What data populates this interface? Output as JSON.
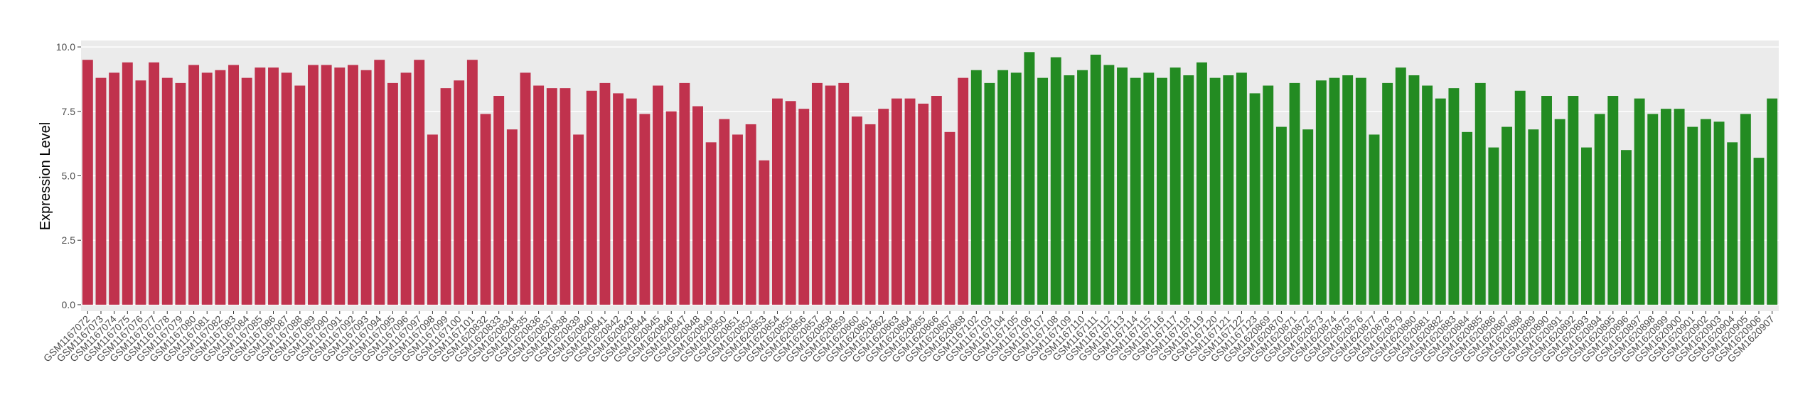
{
  "chart_data": {
    "type": "bar",
    "y_label": "Expression Level",
    "ylim": [
      -0.25,
      10.25
    ],
    "yticks": [
      {
        "value": 0,
        "label": "0.0"
      },
      2.5,
      {
        "value": 5,
        "label": "5.0"
      },
      7.5,
      {
        "value": 10,
        "label": "10.0"
      }
    ],
    "grid": true,
    "series": [
      {
        "color": "#c0324d",
        "categories": [
          "GSM1167072",
          "GSM1167073",
          "GSM1167074",
          "GSM1167075",
          "GSM1167076",
          "GSM1167077",
          "GSM1167078",
          "GSM1167079",
          "GSM1167080",
          "GSM1167081",
          "GSM1167082",
          "GSM1167083",
          "GSM1167084",
          "GSM1167085",
          "GSM1167086",
          "GSM1167087",
          "GSM1167088",
          "GSM1167089",
          "GSM1167090",
          "GSM1167091",
          "GSM1167092",
          "GSM1167093",
          "GSM1167094",
          "GSM1167095",
          "GSM1167096",
          "GSM1167097",
          "GSM1167098",
          "GSM1167099",
          "GSM1167100",
          "GSM1167101",
          "GSM1620832",
          "GSM1620833",
          "GSM1620834",
          "GSM1620835",
          "GSM1620836",
          "GSM1620837",
          "GSM1620838",
          "GSM1620839",
          "GSM1620840",
          "GSM1620841",
          "GSM1620842",
          "GSM1620843",
          "GSM1620844",
          "GSM1620845",
          "GSM1620846",
          "GSM1620847",
          "GSM1620848",
          "GSM1620849",
          "GSM1620850",
          "GSM1620851",
          "GSM1620852",
          "GSM1620853",
          "GSM1620854",
          "GSM1620855",
          "GSM1620856",
          "GSM1620857",
          "GSM1620858",
          "GSM1620859",
          "GSM1620860",
          "GSM1620861",
          "GSM1620862",
          "GSM1620863",
          "GSM1620864",
          "GSM1620865",
          "GSM1620866",
          "GSM1620867",
          "GSM1620868"
        ],
        "values": [
          9.5,
          8.8,
          9.0,
          9.4,
          8.7,
          9.4,
          8.8,
          8.6,
          9.3,
          9.0,
          9.1,
          9.3,
          8.8,
          9.2,
          9.2,
          9.0,
          8.5,
          9.3,
          9.3,
          9.2,
          9.3,
          9.1,
          9.5,
          8.6,
          9.0,
          9.5,
          6.6,
          8.4,
          8.7,
          9.5,
          7.4,
          8.1,
          6.8,
          9.0,
          8.5,
          8.4,
          8.4,
          6.6,
          8.3,
          8.6,
          8.2,
          8.0,
          7.4,
          8.5,
          7.5,
          8.6,
          7.7,
          6.3,
          7.2,
          6.6,
          7.0,
          5.6,
          8.0,
          7.9,
          7.6,
          8.6,
          8.5,
          8.6,
          7.3,
          7.0,
          7.6,
          8.0,
          8.0,
          7.8,
          8.1,
          6.7,
          8.8
        ]
      },
      {
        "color": "#238b22",
        "categories": [
          "GSM1167102",
          "GSM1167103",
          "GSM1167104",
          "GSM1167105",
          "GSM1167106",
          "GSM1167107",
          "GSM1167108",
          "GSM1167109",
          "GSM1167110",
          "GSM1167111",
          "GSM1167112",
          "GSM1167113",
          "GSM1167114",
          "GSM1167115",
          "GSM1167116",
          "GSM1167117",
          "GSM1167118",
          "GSM1167119",
          "GSM1167120",
          "GSM1167121",
          "GSM1167122",
          "GSM1167123",
          "GSM1620869",
          "GSM1620870",
          "GSM1620871",
          "GSM1620872",
          "GSM1620873",
          "GSM1620874",
          "GSM1620875",
          "GSM1620876",
          "GSM1620877",
          "GSM1620878",
          "GSM1620879",
          "GSM1620880",
          "GSM1620881",
          "GSM1620882",
          "GSM1620883",
          "GSM1620884",
          "GSM1620885",
          "GSM1620886",
          "GSM1620887",
          "GSM1620888",
          "GSM1620889",
          "GSM1620890",
          "GSM1620891",
          "GSM1620892",
          "GSM1620893",
          "GSM1620894",
          "GSM1620895",
          "GSM1620896",
          "GSM1620897",
          "GSM1620898",
          "GSM1620899",
          "GSM1620900",
          "GSM1620901",
          "GSM1620902",
          "GSM1620903",
          "GSM1620904",
          "GSM1620905",
          "GSM1620906",
          "GSM1620907"
        ],
        "values": [
          9.1,
          8.6,
          9.1,
          9.0,
          9.8,
          8.8,
          9.6,
          8.9,
          9.1,
          9.7,
          9.3,
          9.2,
          8.8,
          9.0,
          8.8,
          9.2,
          8.9,
          9.4,
          8.8,
          8.9,
          9.0,
          8.2,
          8.5,
          6.9,
          8.6,
          6.8,
          8.7,
          8.8,
          8.9,
          8.8,
          6.6,
          8.6,
          9.2,
          8.9,
          8.5,
          8.0,
          8.4,
          6.7,
          8.6,
          6.1,
          6.9,
          8.3,
          6.8,
          8.1,
          7.2,
          8.1,
          6.1,
          7.4,
          8.1,
          6.0,
          8.0,
          7.4,
          7.6,
          7.6,
          6.9,
          7.2,
          7.1,
          6.3,
          7.4,
          5.7,
          8.0
        ]
      }
    ]
  }
}
